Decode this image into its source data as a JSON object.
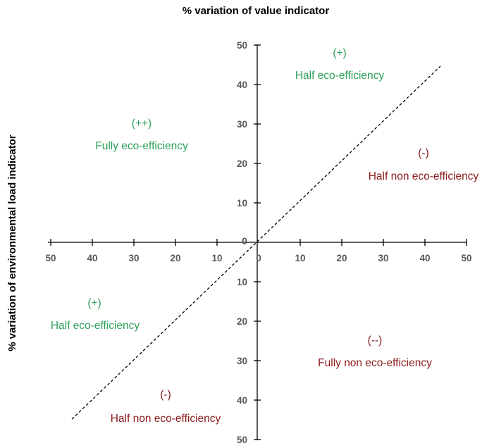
{
  "titles": {
    "top": "% variation of value indicator",
    "left": "% variation of environmental load indicator"
  },
  "axis": {
    "origin_label": "0",
    "x_ticks": [
      "50",
      "40",
      "30",
      "20",
      "10",
      "0",
      "10",
      "20",
      "30",
      "40",
      "50"
    ],
    "y_ticks_upper": [
      "50",
      "40",
      "30",
      "20",
      "10"
    ],
    "y_ticks_lower": [
      "10",
      "20",
      "30",
      "40",
      "50"
    ]
  },
  "quadrants": {
    "top_right": {
      "sign": "(+)",
      "label": "Half eco-efficiency"
    },
    "top_left": {
      "sign": "(++)",
      "label": "Fully eco-efficiency"
    },
    "right_upper": {
      "sign": "(-)",
      "label": "Half non eco-efficiency"
    },
    "left_lower": {
      "sign": "(+)",
      "label": "Half eco-efficiency"
    },
    "bottom_right": {
      "sign": "(--)",
      "label": "Fully non eco-efficiency"
    },
    "bottom_left": {
      "sign": "(-)",
      "label": "Half non eco-efficiency"
    }
  },
  "colors": {
    "efficient": "#2ca05a",
    "non_efficient": "#8b1a1a",
    "tick_label": "#595959"
  }
}
